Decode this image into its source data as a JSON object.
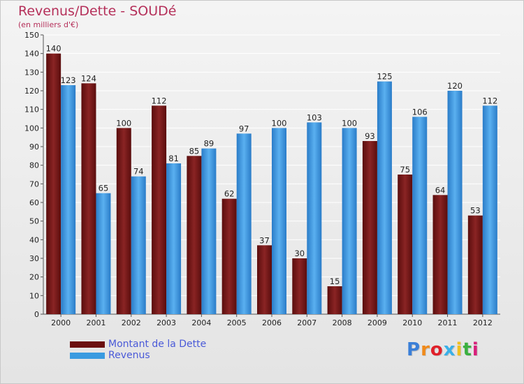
{
  "header": {
    "title": "Revenus/Dette - SOUDé",
    "subtitle": "(en milliers d'€)"
  },
  "chart_data": {
    "type": "bar",
    "categories": [
      "2000",
      "2001",
      "2002",
      "2003",
      "2004",
      "2005",
      "2006",
      "2007",
      "2008",
      "2009",
      "2010",
      "2011",
      "2012"
    ],
    "series": [
      {
        "name": "Montant de la Dette",
        "color": "#7a1a1a",
        "values": [
          140,
          124,
          100,
          112,
          85,
          62,
          37,
          30,
          15,
          93,
          75,
          64,
          53
        ]
      },
      {
        "name": "Revenus",
        "color": "#3a9be0",
        "values": [
          123,
          65,
          74,
          81,
          89,
          97,
          100,
          103,
          100,
          125,
          106,
          120,
          112
        ]
      }
    ],
    "ylim": [
      0,
      150
    ],
    "yticks": [
      0,
      10,
      20,
      30,
      40,
      50,
      60,
      70,
      80,
      90,
      100,
      110,
      120,
      130,
      140,
      150
    ],
    "grid": true,
    "legend_position": "bottom-left"
  },
  "legend": {
    "items": [
      {
        "label": "Montant de la Dette",
        "color": "#6b0f0f"
      },
      {
        "label": "Revenus",
        "color": "#3a9be0"
      }
    ]
  },
  "logo": {
    "letters": [
      "P",
      "r",
      "o",
      "x",
      "i",
      "t",
      "i"
    ],
    "colors": [
      "#3a7fd8",
      "#f08a1a",
      "#e0202a",
      "#3ab0e8",
      "#f0c020",
      "#3ab040",
      "#d8207a"
    ]
  }
}
